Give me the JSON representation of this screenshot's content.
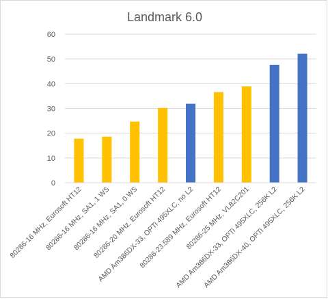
{
  "chart_data": {
    "type": "bar",
    "title": "Landmark 6.0",
    "xlabel": "",
    "ylabel": "",
    "ylim": [
      0,
      60
    ],
    "yticks": [
      0,
      10,
      20,
      30,
      40,
      50,
      60
    ],
    "grid": true,
    "legend": "none",
    "categories": [
      "80286-16 MHz, Eurosoft HT12",
      "80286-16 MHz, SA1, 1 WS",
      "80286-16 MHz, SA1, 0 WS",
      "80286-20 MHz, Eurosoft HT12",
      "AMD Am386DX-33, OPTi 495XLC, no L2",
      "80286-23.589 MHz, Eurosoft HT12",
      "80286-25 MHz, VL82C201",
      "AMD Am386DX-33, OPTi 495XLC, 256K L2",
      "AMD Am386DX-40, OPTi 495XLC, 256K L2"
    ],
    "values": [
      17.8,
      18.6,
      24.7,
      30.2,
      31.9,
      36.6,
      38.9,
      47.6,
      52.1
    ],
    "bar_colors": [
      "#ffc000",
      "#ffc000",
      "#ffc000",
      "#ffc000",
      "#4472c4",
      "#ffc000",
      "#ffc000",
      "#4472c4",
      "#4472c4"
    ]
  }
}
